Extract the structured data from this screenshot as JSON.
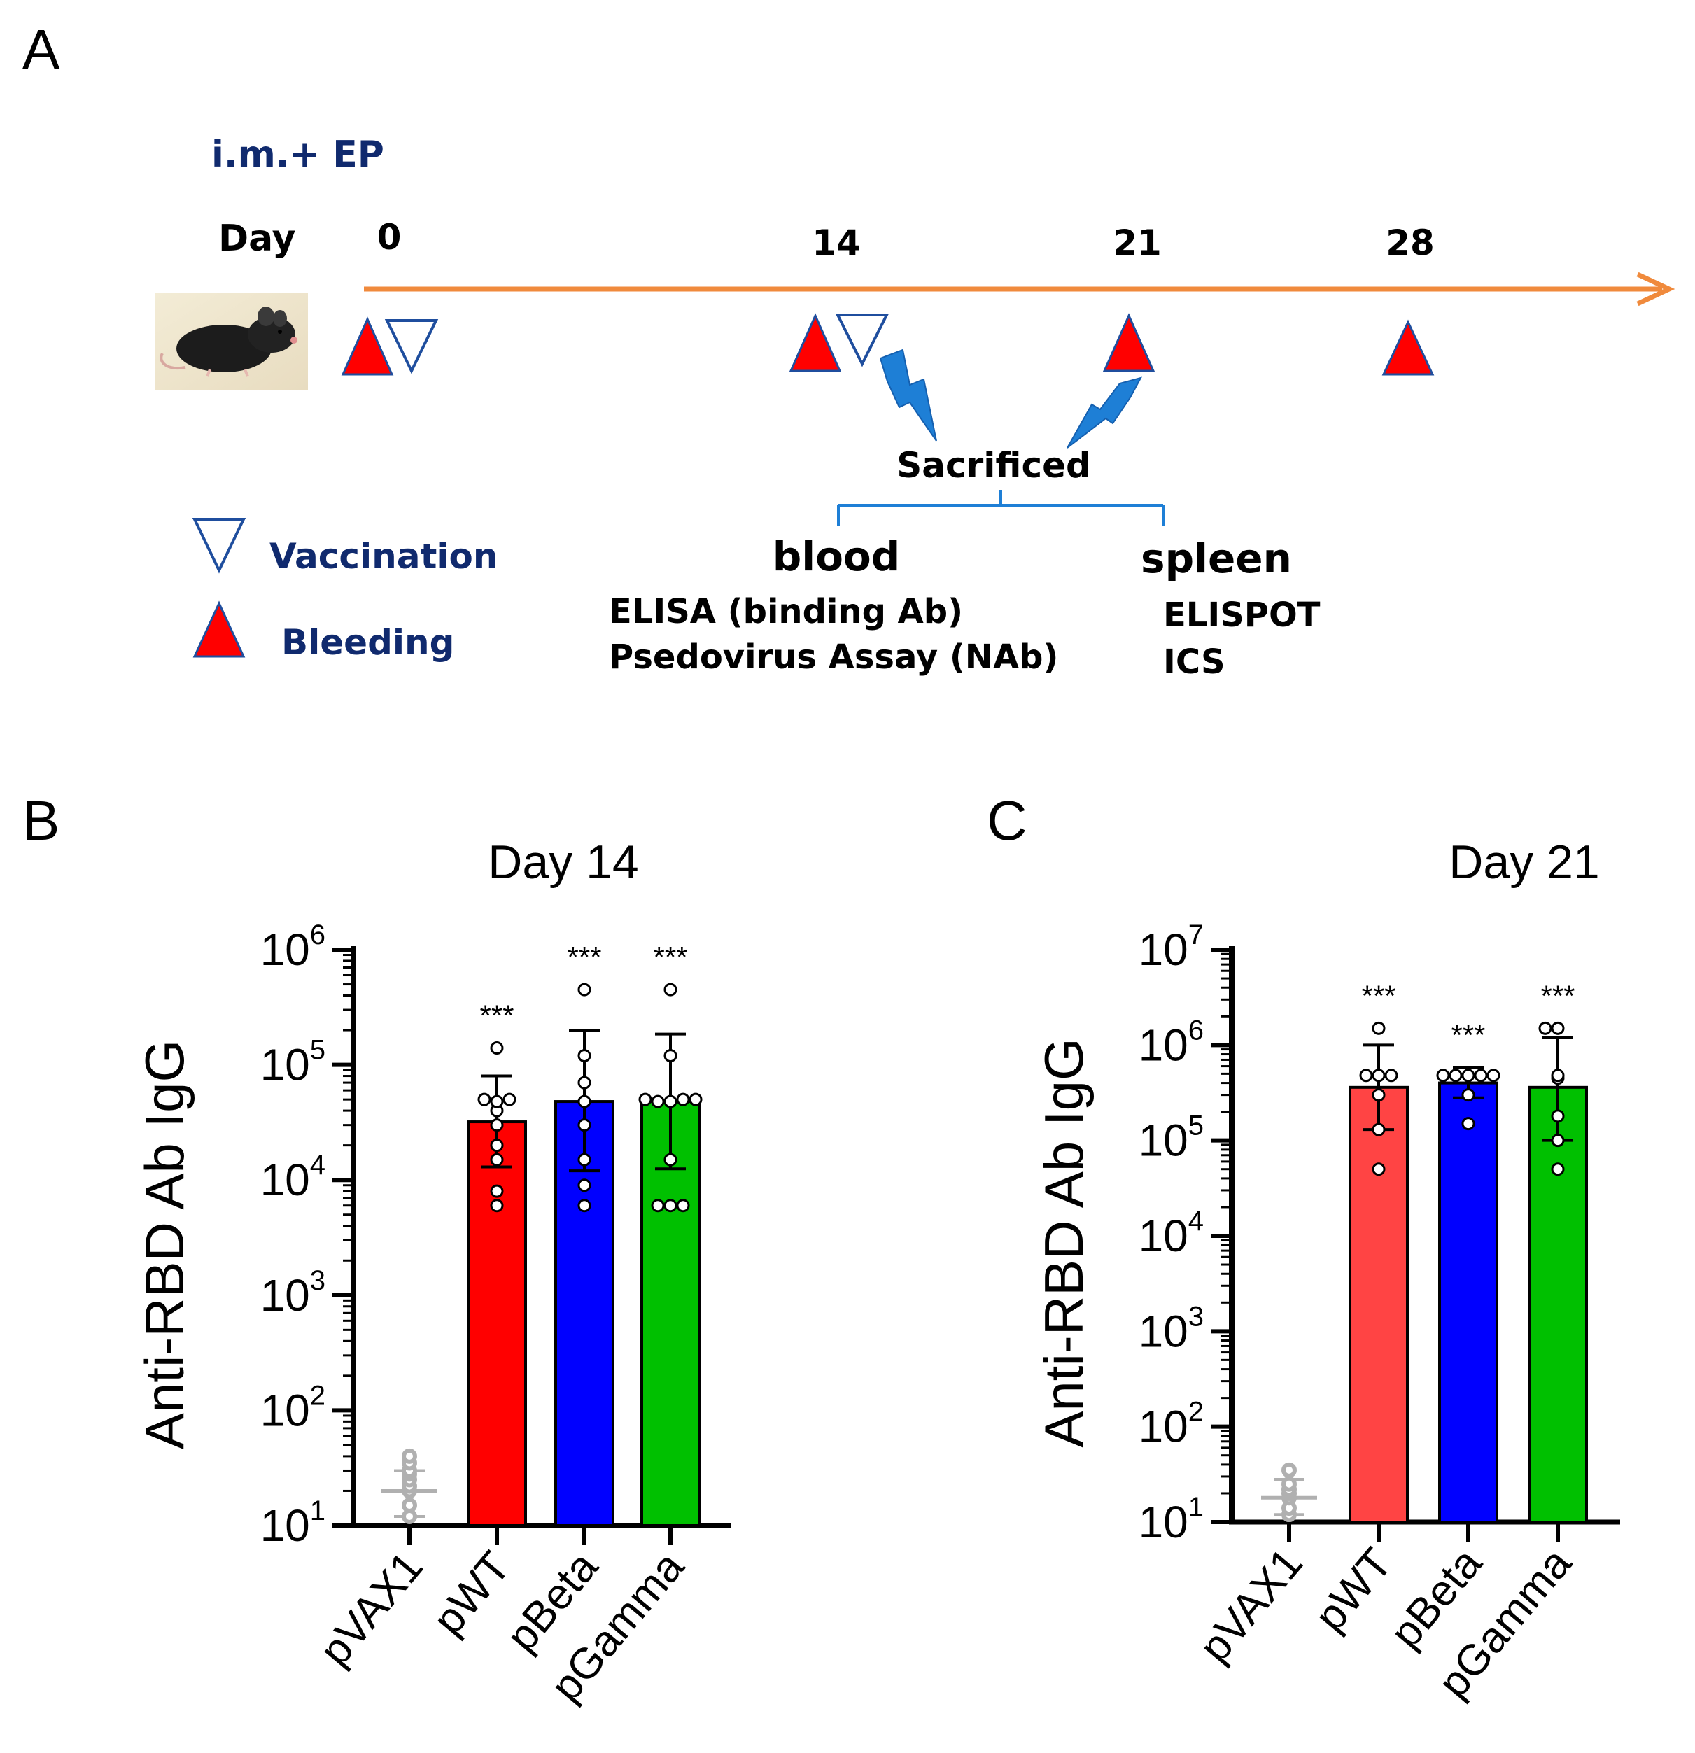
{
  "panels": {
    "a": "A",
    "b": "B",
    "c": "C"
  },
  "schedule": {
    "route_label": "i.m.+ EP",
    "day_label": "Day",
    "days": [
      "0",
      "14",
      "21",
      "28"
    ],
    "sacrificed_label": "Sacrificed",
    "blood_label": "blood",
    "blood_assays": [
      "ELISA (binding Ab)",
      "Psedovirus Assay (NAb)"
    ],
    "spleen_label": "spleen",
    "spleen_assays": [
      "ELISPOT",
      "ICS"
    ],
    "legend": {
      "vaccination": "Vaccination",
      "bleeding": "Bleeding"
    },
    "colors": {
      "timeline": "#f08a3c",
      "bleeding": "#ff0000",
      "vaccination_outline": "#1f4e9e",
      "arrow": "#1e7fd6",
      "text_navy": "#102a6e"
    },
    "icons": [
      "mouse-photo-icon",
      "vaccination-triangle-icon",
      "bleeding-triangle-icon",
      "lightning-arrow-icon"
    ]
  },
  "chart_data": [
    {
      "type": "bar",
      "title": "Day 14",
      "ylabel": "Anti-RBD Ab IgG",
      "yscale": "log",
      "ylim": [
        10,
        1000000
      ],
      "ytick_exponents": [
        "1",
        "2",
        "3",
        "4",
        "5",
        "6"
      ],
      "ytick_base": "10",
      "categories": [
        "pVAX1",
        "pWT",
        "pBeta",
        "pGamma"
      ],
      "colors": [
        "#b0b0b0",
        "#ff0000",
        "#0000ff",
        "#00c000"
      ],
      "values": [
        20,
        32000,
        48000,
        48000
      ],
      "error_low": [
        12,
        13000,
        12000,
        12500
      ],
      "error_high": [
        30,
        80000,
        200000,
        185000
      ],
      "significance": [
        "",
        "***",
        "***",
        "***"
      ],
      "points": [
        [
          12,
          15,
          20,
          22,
          25,
          28,
          30,
          35,
          40
        ],
        [
          6000,
          8000,
          15000,
          20000,
          30000,
          40000,
          48000,
          50000,
          50000,
          140000
        ],
        [
          6000,
          9000,
          15000,
          30000,
          48000,
          70000,
          120000,
          450000
        ],
        [
          6000,
          6000,
          6000,
          15000,
          48000,
          48000,
          50000,
          50000,
          50000,
          120000,
          450000
        ]
      ]
    },
    {
      "type": "bar",
      "title": "Day 21",
      "ylabel": "Anti-RBD Ab IgG",
      "yscale": "log",
      "ylim": [
        10,
        10000000
      ],
      "ytick_exponents": [
        "1",
        "2",
        "3",
        "4",
        "5",
        "6",
        "7"
      ],
      "ytick_base": "10",
      "categories": [
        "pVAX1",
        "pWT",
        "pBeta",
        "pGamma"
      ],
      "colors": [
        "#b0b0b0",
        "#ff4444",
        "#0000ff",
        "#00c000"
      ],
      "values": [
        18,
        360000,
        400000,
        360000
      ],
      "error_low": [
        12,
        130000,
        280000,
        100000
      ],
      "error_high": [
        28,
        1000000,
        580000,
        1200000
      ],
      "significance": [
        "",
        "***",
        "***",
        "***"
      ],
      "points": [
        [
          12,
          14,
          18,
          20,
          22,
          25,
          35
        ],
        [
          50000,
          130000,
          300000,
          480000,
          480000,
          480000,
          1500000
        ],
        [
          150000,
          300000,
          480000,
          480000,
          480000,
          480000,
          480000
        ],
        [
          50000,
          100000,
          180000,
          450000,
          480000,
          1500000,
          1500000
        ]
      ]
    }
  ]
}
